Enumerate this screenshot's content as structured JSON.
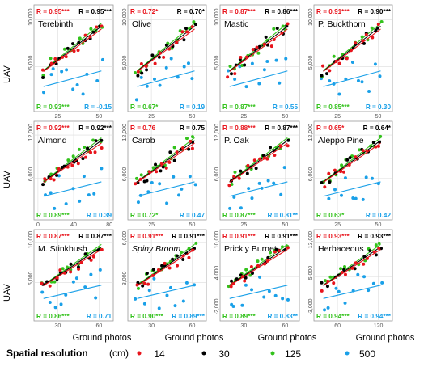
{
  "figure": {
    "ylabel": "UAV",
    "xlabel": "Ground photos"
  },
  "legend": {
    "title": "Spatial resolution",
    "unit": "(cm)",
    "items": [
      {
        "label": "14",
        "color": "#e8141c"
      },
      {
        "label": "30",
        "color": "#000000"
      },
      {
        "label": "125",
        "color": "#33c21c"
      },
      {
        "label": "500",
        "color": "#1aa0e8"
      }
    ]
  },
  "chart_data": [
    {
      "type": "scatter",
      "name": "Terebinth",
      "xticks": [
        "25",
        "50"
      ],
      "yticks": [
        "5,000",
        "10,000"
      ],
      "r": {
        "14": "R = 0.95***",
        "30": "R = 0.95***",
        "125": "R = 0.93***",
        "500": "R = -0.15"
      }
    },
    {
      "type": "scatter",
      "name": "Olive",
      "xticks": [
        "25",
        "50"
      ],
      "yticks": [
        "5,000",
        "10,000"
      ],
      "r": {
        "14": "R = 0.72*",
        "30": "R = 0.70*",
        "125": "R = 0.67*",
        "500": "R = 0.19"
      }
    },
    {
      "type": "scatter",
      "name": "Mastic",
      "xticks": [
        "25",
        "50"
      ],
      "yticks": [
        "5,000",
        "10,000"
      ],
      "r": {
        "14": "R = 0.87***",
        "30": "R = 0.86***",
        "125": "R = 0.87***",
        "500": "R = 0.55"
      }
    },
    {
      "type": "scatter",
      "name": "P. Buckthorn",
      "xticks": [
        "25",
        "50"
      ],
      "yticks": [
        "5,000",
        "10,000"
      ],
      "r": {
        "14": "R = 0.91***",
        "30": "R = 0.90***",
        "125": "R = 0.85***",
        "500": "R = 0.30"
      }
    },
    {
      "type": "scatter",
      "name": "Almond",
      "xticks": [
        "0",
        "40",
        "80"
      ],
      "yticks": [
        "6,000",
        "12,000"
      ],
      "r": {
        "14": "R = 0.92***",
        "30": "R = 0.92***",
        "125": "R = 0.89***",
        "500": "R = 0.39"
      }
    },
    {
      "type": "scatter",
      "name": "Carob",
      "xticks": [
        "25",
        "50"
      ],
      "yticks": [
        "6,000",
        "12,000"
      ],
      "r": {
        "14": "R = 0.76",
        "30": "R = 0.75",
        "125": "R = 0.72*",
        "500": "R = 0.47"
      }
    },
    {
      "type": "scatter",
      "name": "P. Oak",
      "xticks": [
        "25",
        "50"
      ],
      "yticks": [
        "6,000",
        "12,000"
      ],
      "r": {
        "14": "R = 0.88***",
        "30": "R = 0.87***",
        "125": "R = 0.87***",
        "500": "R = 0.81**"
      }
    },
    {
      "type": "scatter",
      "name": "Aleppo Pine",
      "xticks": [
        "25",
        "50"
      ],
      "yticks": [
        "6,000",
        "12,000"
      ],
      "r": {
        "14": "R = 0.65*",
        "30": "R = 0.64*",
        "125": "R = 0.63*",
        "500": "R = 0.42"
      }
    },
    {
      "type": "scatter",
      "name": "M. Stinkbush",
      "xticks": [
        "30",
        "60"
      ],
      "yticks": [
        "5,000",
        "10,000"
      ],
      "r": {
        "14": "R = 0.87***",
        "30": "R = 0.87***",
        "125": "R = 0.86***",
        "500": "R = 0.71"
      }
    },
    {
      "type": "scatter",
      "name": "Spiny Broom",
      "xticks": [
        "30",
        "60"
      ],
      "yticks": [
        "3,000",
        "6,000"
      ],
      "r": {
        "14": "R = 0.91***",
        "30": "R = 0.91***",
        "125": "R = 0.90***",
        "500": "R = 0.89***"
      }
    },
    {
      "type": "scatter",
      "name": "Prickly Burnet",
      "xticks": [
        "30",
        "60"
      ],
      "yticks": [
        "-2,000",
        "4,000",
        "10,000"
      ],
      "r": {
        "14": "R = 0.91***",
        "30": "R = 0.91***",
        "125": "R = 0.89***",
        "500": "R = 0.83**"
      }
    },
    {
      "type": "scatter",
      "name": "Herbaceous",
      "xticks": [
        "60",
        "120"
      ],
      "yticks": [
        "-3,000",
        "5,000",
        "13,000"
      ],
      "r": {
        "14": "R = 0.93***",
        "30": "R = 0.93***",
        "125": "R = 0.94***",
        "500": "R = 0.94***"
      }
    }
  ]
}
